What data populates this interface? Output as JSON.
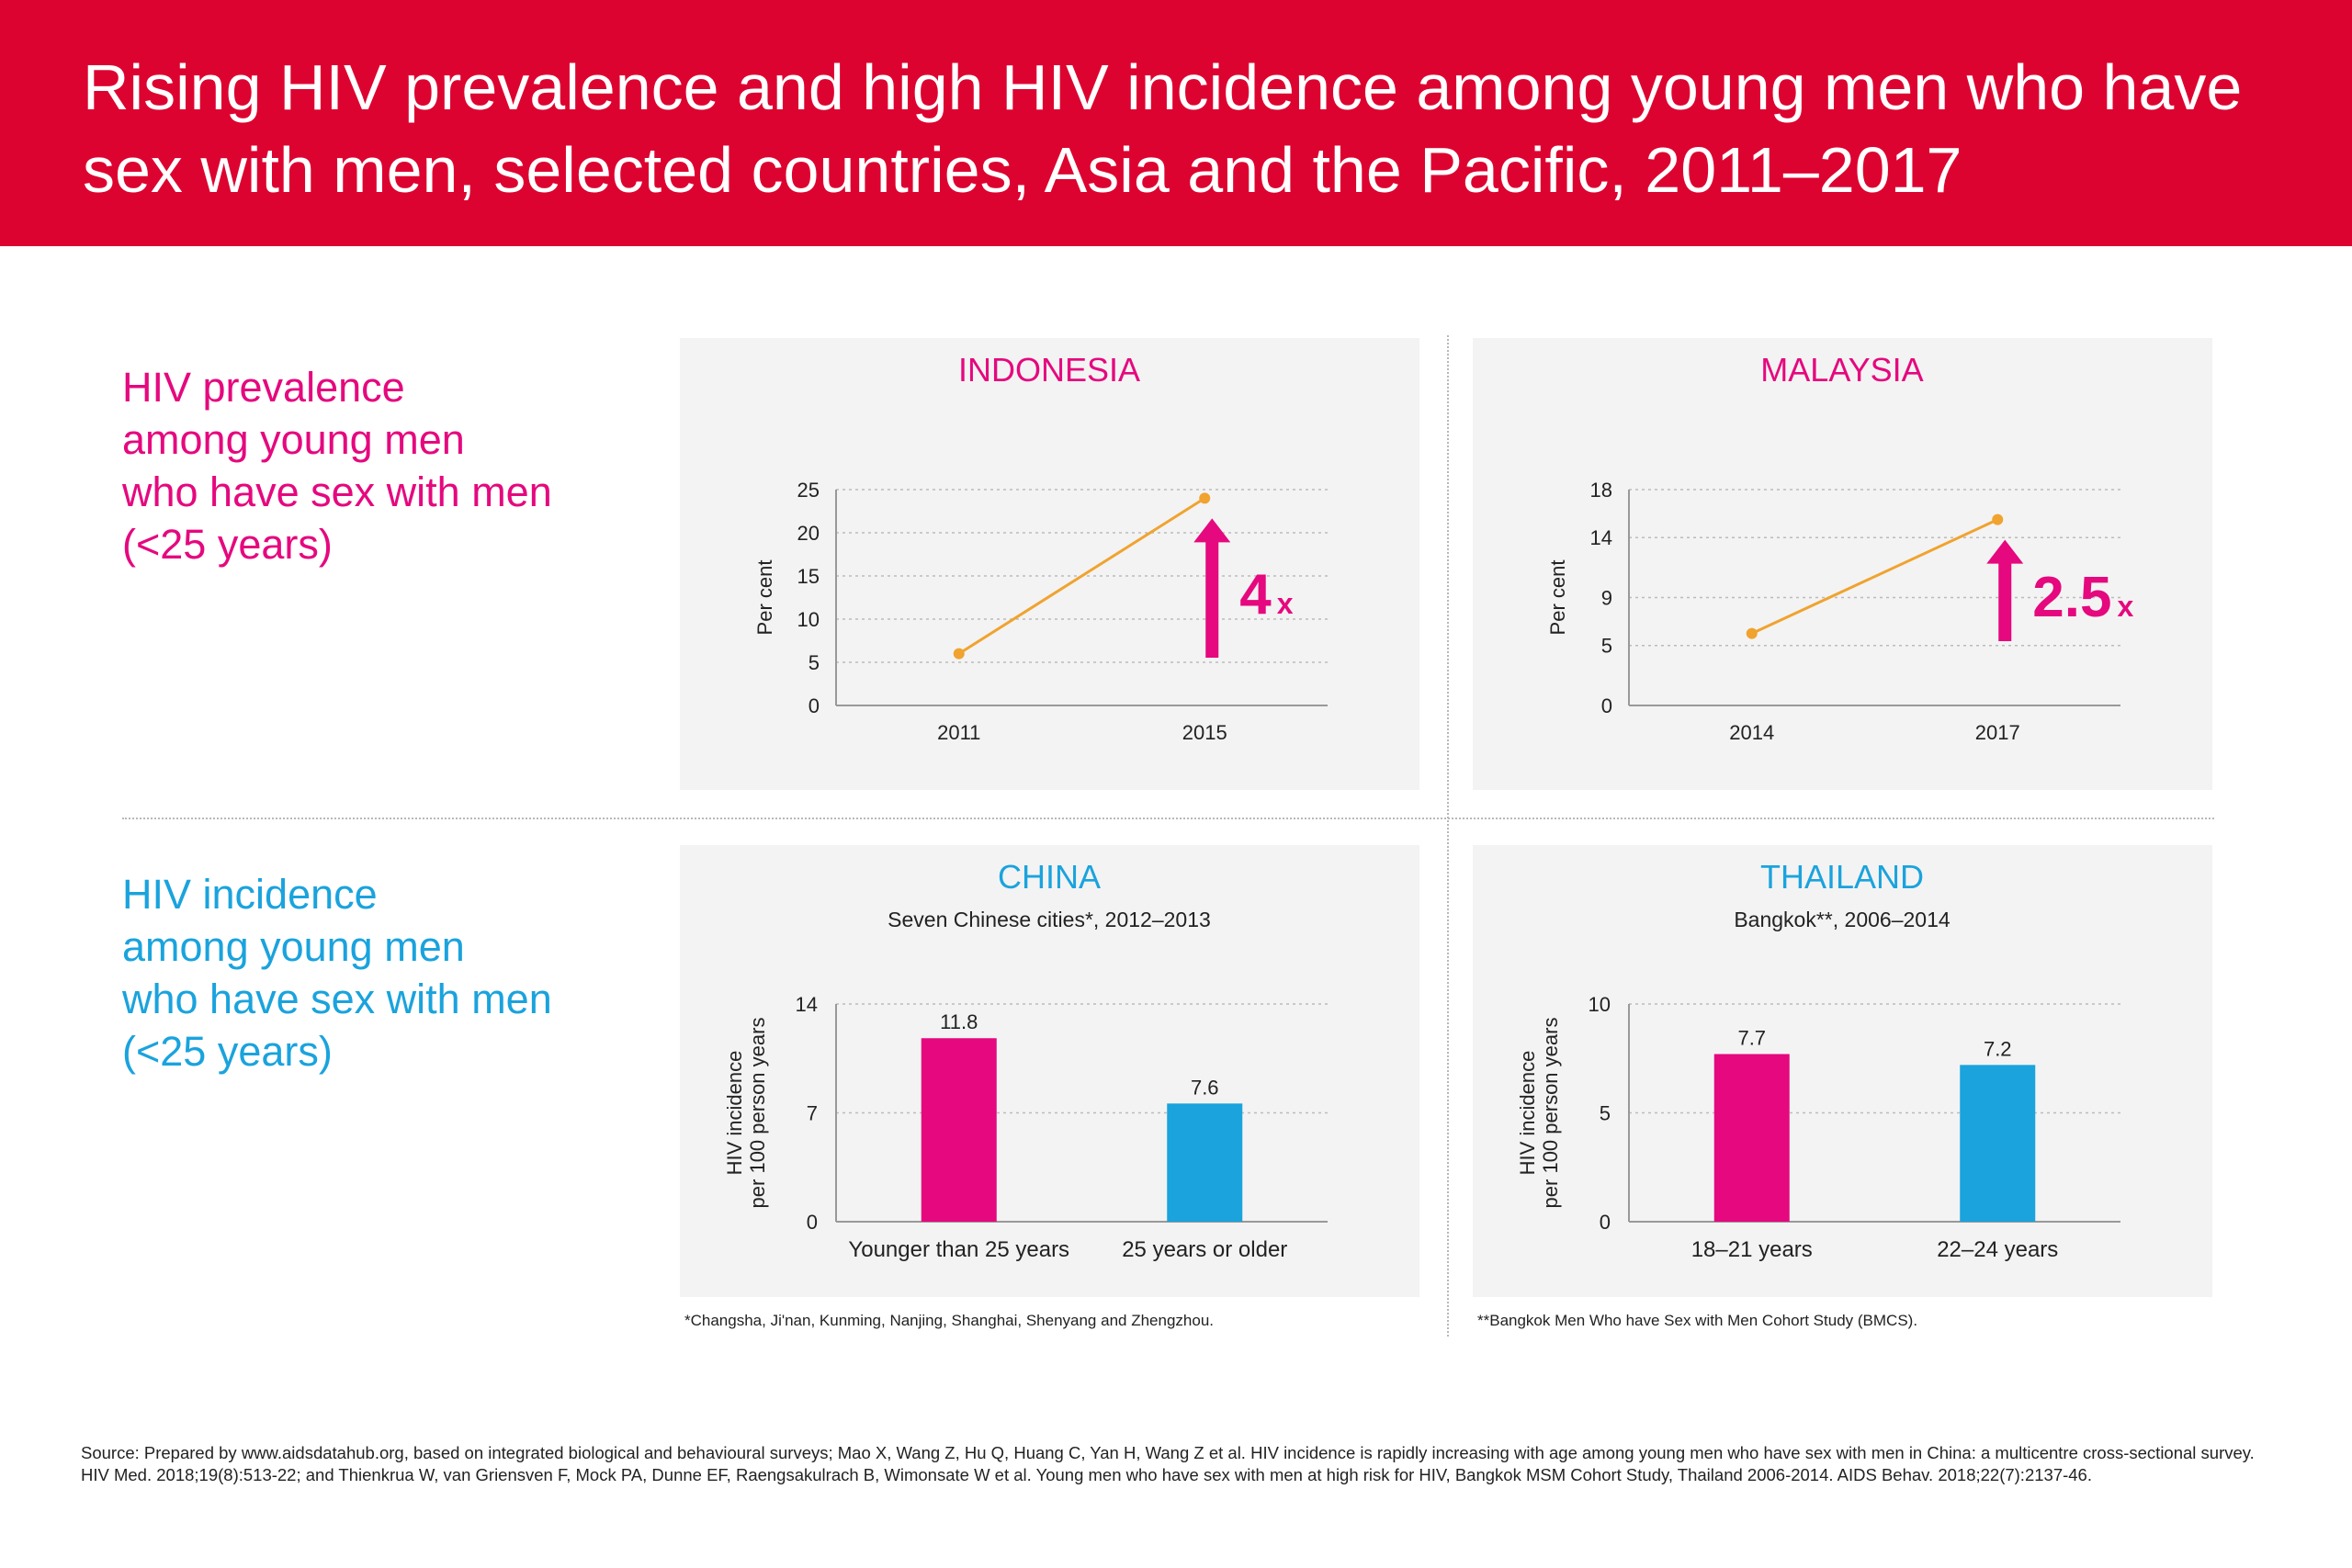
{
  "header": {
    "title": "Rising HIV prevalence and high HIV incidence among young men who have sex with men, selected countries, Asia and the Pacific, 2011–2017"
  },
  "rows": {
    "prevalence_label": [
      "HIV prevalence",
      "among young men",
      "who have sex with men",
      "(<25 years)"
    ],
    "incidence_label": [
      "HIV incidence",
      "among young men",
      "who have sex with men",
      "(<25 years)"
    ]
  },
  "colors": {
    "header_bg": "#dd0330",
    "pink": "#e5087e",
    "blue": "#1aa3dd",
    "line_orange": "#f0a32f",
    "panel_bg": "#f3f3f3"
  },
  "chart_data": [
    {
      "type": "line",
      "title": "INDONESIA",
      "subtitle": "",
      "ylabel": "Per cent",
      "xlabel": "",
      "x": [
        "2011",
        "2015"
      ],
      "y": [
        6,
        24
      ],
      "yticks": [
        0,
        5,
        10,
        15,
        20,
        25
      ],
      "ylim": [
        0,
        25
      ],
      "grid": true,
      "annotation": {
        "number": "4",
        "suffix": "x",
        "icon": "arrow-up-icon"
      }
    },
    {
      "type": "line",
      "title": "MALAYSIA",
      "subtitle": "",
      "ylabel": "Per cent",
      "xlabel": "",
      "x": [
        "2014",
        "2017"
      ],
      "y": [
        6,
        15.5
      ],
      "yticks": [
        0,
        5,
        9,
        14,
        18
      ],
      "ylim": [
        0,
        18
      ],
      "grid": true,
      "annotation": {
        "number": "2.5",
        "suffix": "x",
        "icon": "arrow-up-icon"
      }
    },
    {
      "type": "bar",
      "title": "CHINA",
      "subtitle": "Seven Chinese cities*, 2012–2013",
      "ylabel_lines": [
        "HIV incidence",
        "per 100 person years"
      ],
      "categories": [
        "Younger than 25 years",
        "25 years or older"
      ],
      "values": [
        11.8,
        7.6
      ],
      "value_labels": [
        "11.8",
        "7.6"
      ],
      "yticks": [
        0,
        7,
        14
      ],
      "ylim": [
        0,
        14
      ],
      "grid": true,
      "footnote": "*Changsha, Ji'nan, Kunming, Nanjing, Shanghai, Shenyang and Zhengzhou."
    },
    {
      "type": "bar",
      "title": "THAILAND",
      "subtitle": "Bangkok**, 2006–2014",
      "ylabel_lines": [
        "HIV incidence",
        "per 100 person years"
      ],
      "categories": [
        "18–21 years",
        "22–24 years"
      ],
      "values": [
        7.7,
        7.2
      ],
      "value_labels": [
        "7.7",
        "7.2"
      ],
      "yticks": [
        0,
        5,
        10
      ],
      "ylim": [
        0,
        10
      ],
      "grid": true,
      "footnote": "**Bangkok Men Who have Sex with Men Cohort Study (BMCS)."
    }
  ],
  "source": "Source: Prepared by www.aidsdatahub.org, based on integrated biological and behavioural surveys; Mao X, Wang Z, Hu Q, Huang C, Yan H,  Wang Z et al. HIV incidence is rapidly increasing with age among young men who have sex with men in China: a multicentre cross-sectional  survey. HIV Med. 2018;19(8):513-22; and Thienkrua W, van Griensven F, Mock PA, Dunne EF, Raengsakulrach B, Wimonsate W et al. Young  men who have sex with men at high risk for HIV, Bangkok MSM Cohort Study, Thailand 2006-2014. AIDS Behav. 2018;22(7):2137-46."
}
